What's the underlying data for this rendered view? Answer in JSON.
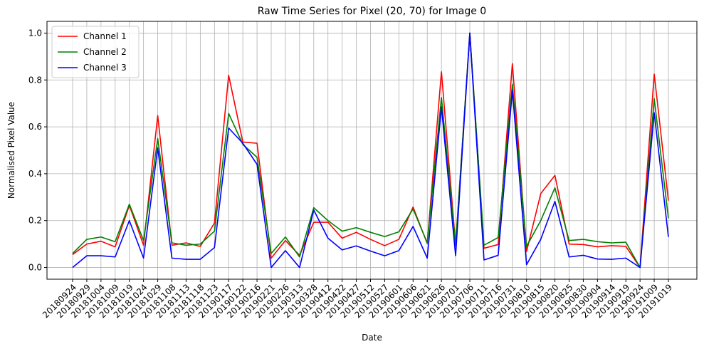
{
  "chart_data": {
    "type": "line",
    "title": "Raw Time Series for Pixel (20, 70) for Image 0",
    "xlabel": "Date",
    "ylabel": "Normalised Pixel Value",
    "ylim": [
      -0.05,
      1.05
    ],
    "yticks": [
      "0.0",
      "0.2",
      "0.4",
      "0.6",
      "0.8",
      "1.0"
    ],
    "grid": true,
    "legend_position": "upper-left",
    "categories": [
      "20180924",
      "20180929",
      "20181004",
      "20181009",
      "20181019",
      "20181024",
      "20181029",
      "20181108",
      "20181113",
      "20181118",
      "20181123",
      "20190117",
      "20190122",
      "20190216",
      "20190221",
      "20190226",
      "20190313",
      "20190328",
      "20190412",
      "20190422",
      "20190427",
      "20190512",
      "20190527",
      "20190601",
      "20190606",
      "20190621",
      "20190626",
      "20190701",
      "20190706",
      "20190711",
      "20190716",
      "20190731",
      "20190810",
      "20190815",
      "20190820",
      "20190825",
      "20190830",
      "20190904",
      "20190914",
      "20190919",
      "20190924",
      "20191009",
      "20191019"
    ],
    "series": [
      {
        "name": "Channel 1",
        "color": "#ff0000",
        "values": [
          0.055,
          0.1,
          0.112,
          0.088,
          0.265,
          0.095,
          0.648,
          0.095,
          0.105,
          0.09,
          0.19,
          0.82,
          0.535,
          0.53,
          0.04,
          0.115,
          0.052,
          0.193,
          0.193,
          0.125,
          0.15,
          0.12,
          0.093,
          0.12,
          0.258,
          0.102,
          0.835,
          0.095,
          1.0,
          0.082,
          0.098,
          0.87,
          0.068,
          0.315,
          0.393,
          0.1,
          0.098,
          0.088,
          0.093,
          0.09,
          0.0,
          0.825,
          0.285
        ]
      },
      {
        "name": "Channel 2",
        "color": "#008000",
        "values": [
          0.06,
          0.12,
          0.13,
          0.11,
          0.27,
          0.115,
          0.55,
          0.105,
          0.095,
          0.1,
          0.155,
          0.657,
          0.525,
          0.47,
          0.06,
          0.13,
          0.045,
          0.255,
          0.2,
          0.155,
          0.17,
          0.15,
          0.132,
          0.152,
          0.25,
          0.105,
          0.725,
          0.095,
          1.0,
          0.095,
          0.128,
          0.782,
          0.09,
          0.2,
          0.34,
          0.115,
          0.12,
          0.11,
          0.105,
          0.108,
          0.0,
          0.72,
          0.21
        ]
      },
      {
        "name": "Channel 3",
        "color": "#0000ff",
        "values": [
          0.0,
          0.05,
          0.05,
          0.045,
          0.2,
          0.04,
          0.51,
          0.04,
          0.035,
          0.035,
          0.085,
          0.595,
          0.53,
          0.44,
          0.0,
          0.072,
          0.0,
          0.245,
          0.125,
          0.075,
          0.092,
          0.07,
          0.05,
          0.072,
          0.175,
          0.04,
          0.685,
          0.05,
          1.0,
          0.032,
          0.052,
          0.755,
          0.012,
          0.12,
          0.282,
          0.045,
          0.052,
          0.036,
          0.035,
          0.04,
          0.0,
          0.66,
          0.13
        ]
      }
    ]
  }
}
